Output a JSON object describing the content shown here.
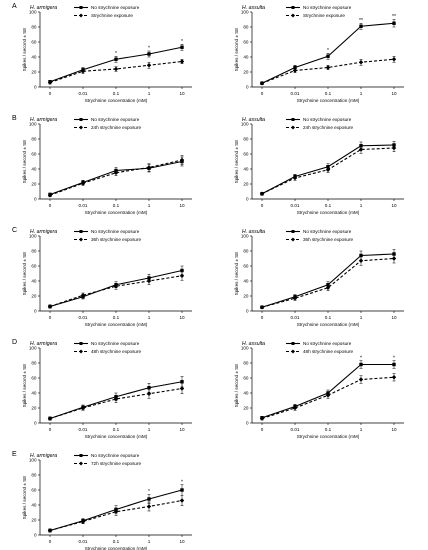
{
  "shared": {
    "ylabel": "Spikes / second ± SE",
    "xlabel": "Strychnine concentration (mM)",
    "x_ticks": [
      "0",
      "0.01",
      "0.1",
      "1",
      "10"
    ],
    "y_ticks": [
      "0",
      "20",
      "40",
      "60",
      "80",
      "100"
    ]
  },
  "chart_data": [
    {
      "type": "line",
      "panel": "A",
      "species": "H. armigera",
      "ylim": [
        0,
        100
      ],
      "categories": [
        "0",
        "0.01",
        "0.1",
        "1",
        "10"
      ],
      "series": [
        {
          "name": "No strychnine exposure",
          "values": [
            7,
            23,
            37,
            44,
            53
          ],
          "err": [
            2,
            3,
            4,
            4,
            4
          ]
        },
        {
          "name": "Strychnine exposure",
          "values": [
            6,
            21,
            24,
            29,
            34
          ],
          "err": [
            2,
            3,
            3,
            4,
            3
          ]
        }
      ],
      "annotations": [
        {
          "x": "0.1",
          "text": "*"
        },
        {
          "x": "1",
          "text": "*"
        },
        {
          "x": "10",
          "text": "*"
        }
      ]
    },
    {
      "type": "line",
      "panel": "",
      "species": "H. assulta",
      "ylim": [
        0,
        100
      ],
      "categories": [
        "0",
        "0.01",
        "0.1",
        "1",
        "10"
      ],
      "series": [
        {
          "name": "No strychnine exposure",
          "values": [
            5,
            26,
            41,
            81,
            85
          ],
          "err": [
            2,
            3,
            4,
            4,
            5
          ]
        },
        {
          "name": "Strychnine exposure",
          "values": [
            5,
            22,
            26,
            33,
            37
          ],
          "err": [
            2,
            3,
            3,
            4,
            4
          ]
        }
      ],
      "annotations": [
        {
          "x": "0.1",
          "text": "*"
        },
        {
          "x": "1",
          "text": "**"
        },
        {
          "x": "10",
          "text": "**"
        }
      ]
    },
    {
      "type": "line",
      "panel": "B",
      "species": "H. armigera",
      "ylim": [
        0,
        100
      ],
      "categories": [
        "0",
        "0.01",
        "0.1",
        "1",
        "10"
      ],
      "series": [
        {
          "name": "No strychnine exposure",
          "values": [
            6,
            22,
            38,
            41,
            50
          ],
          "err": [
            2,
            3,
            4,
            5,
            6
          ]
        },
        {
          "name": "24h strychnine exposure",
          "values": [
            5,
            21,
            35,
            42,
            52
          ],
          "err": [
            2,
            3,
            4,
            5,
            6
          ]
        }
      ],
      "annotations": []
    },
    {
      "type": "line",
      "panel": "",
      "species": "H. assulta",
      "ylim": [
        0,
        100
      ],
      "categories": [
        "0",
        "0.01",
        "0.1",
        "1",
        "10"
      ],
      "series": [
        {
          "name": "No strychnine exposure",
          "values": [
            7,
            30,
            43,
            71,
            72
          ],
          "err": [
            2,
            3,
            4,
            5,
            5
          ]
        },
        {
          "name": "24h strychnine exposure",
          "values": [
            7,
            28,
            39,
            66,
            68
          ],
          "err": [
            2,
            3,
            4,
            5,
            5
          ]
        }
      ],
      "annotations": []
    },
    {
      "type": "line",
      "panel": "C",
      "species": "H. armigera",
      "ylim": [
        0,
        100
      ],
      "categories": [
        "0",
        "0.01",
        "0.1",
        "1",
        "10"
      ],
      "series": [
        {
          "name": "No strychnine exposure",
          "values": [
            6,
            19,
            35,
            44,
            54
          ],
          "err": [
            2,
            3,
            4,
            5,
            6
          ]
        },
        {
          "name": "36h strychnine exposure",
          "values": [
            6,
            21,
            33,
            40,
            47
          ],
          "err": [
            2,
            3,
            4,
            5,
            6
          ]
        }
      ],
      "annotations": []
    },
    {
      "type": "line",
      "panel": "",
      "species": "H. assulta",
      "ylim": [
        0,
        100
      ],
      "categories": [
        "0",
        "0.01",
        "0.1",
        "1",
        "10"
      ],
      "series": [
        {
          "name": "No strychnine exposure",
          "values": [
            5,
            19,
            35,
            74,
            76
          ],
          "err": [
            2,
            3,
            4,
            6,
            6
          ]
        },
        {
          "name": "36h strychnine exposure",
          "values": [
            5,
            17,
            31,
            67,
            70
          ],
          "err": [
            2,
            3,
            4,
            6,
            6
          ]
        }
      ],
      "annotations": []
    },
    {
      "type": "line",
      "panel": "D",
      "species": "H. armigera",
      "ylim": [
        0,
        100
      ],
      "categories": [
        "0",
        "0.01",
        "0.1",
        "1",
        "10"
      ],
      "series": [
        {
          "name": "No strychnine exposure",
          "values": [
            6,
            21,
            35,
            47,
            55
          ],
          "err": [
            2,
            3,
            5,
            6,
            7
          ]
        },
        {
          "name": "48h strychnine exposure",
          "values": [
            6,
            20,
            32,
            39,
            46
          ],
          "err": [
            2,
            3,
            5,
            6,
            7
          ]
        }
      ],
      "annotations": []
    },
    {
      "type": "line",
      "panel": "",
      "species": "H. assulta",
      "ylim": [
        0,
        100
      ],
      "categories": [
        "0",
        "0.01",
        "0.1",
        "1",
        "10"
      ],
      "series": [
        {
          "name": "No strychnine exposure",
          "values": [
            7,
            22,
            40,
            78,
            78
          ],
          "err": [
            2,
            3,
            4,
            5,
            5
          ]
        },
        {
          "name": "48h strychnine exposure",
          "values": [
            6,
            20,
            37,
            58,
            61
          ],
          "err": [
            2,
            3,
            4,
            5,
            5
          ]
        }
      ],
      "annotations": [
        {
          "x": "1",
          "text": "*"
        },
        {
          "x": "10",
          "text": "*"
        }
      ]
    },
    {
      "type": "line",
      "panel": "E",
      "species": "H. armigera",
      "ylim": [
        0,
        100
      ],
      "categories": [
        "0",
        "0.01",
        "0.1",
        "1",
        "10"
      ],
      "series": [
        {
          "name": "No strychnine exposure",
          "values": [
            6,
            19,
            34,
            48,
            60
          ],
          "err": [
            2,
            3,
            5,
            6,
            7
          ]
        },
        {
          "name": "72h strychnine exposure",
          "values": [
            6,
            18,
            31,
            38,
            46
          ],
          "err": [
            2,
            3,
            5,
            6,
            7
          ]
        }
      ],
      "annotations": [
        {
          "x": "1",
          "text": "*"
        },
        {
          "x": "10",
          "text": "*"
        }
      ]
    }
  ]
}
